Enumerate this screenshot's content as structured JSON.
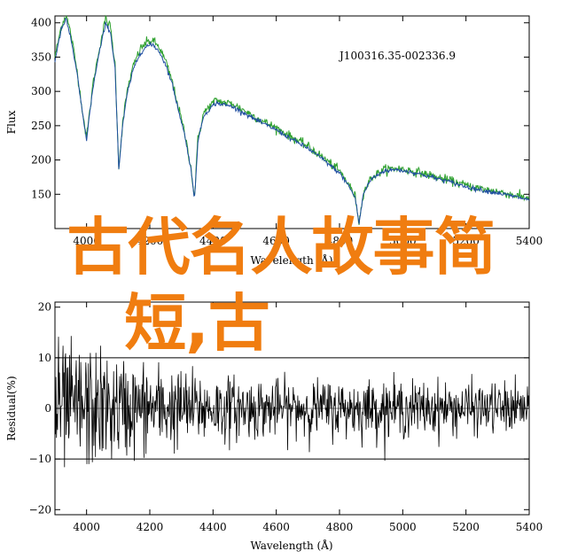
{
  "chart_data": [
    {
      "type": "line",
      "title": "",
      "annotation": "J100316.35-002336.9",
      "xlabel": "Wavelength (Å)",
      "ylabel": "Flux",
      "xlim": [
        3900,
        5400
      ],
      "ylim": [
        100,
        410
      ],
      "xticks": [
        4000,
        4200,
        4400,
        4600,
        4800,
        5000,
        5200,
        5400
      ],
      "yticks": [
        150,
        200,
        250,
        300,
        350,
        400
      ],
      "grid": false,
      "series": [
        {
          "color": "#2ca02c",
          "x": [
            3900,
            3920,
            3935,
            3950,
            3970,
            3990,
            4000,
            4020,
            4040,
            4060,
            4075,
            4090,
            4102,
            4115,
            4130,
            4150,
            4170,
            4190,
            4210,
            4230,
            4250,
            4270,
            4290,
            4310,
            4330,
            4341,
            4352,
            4370,
            4390,
            4410,
            4430,
            4460,
            4500,
            4550,
            4600,
            4650,
            4700,
            4750,
            4800,
            4830,
            4850,
            4862,
            4875,
            4900,
            4940,
            4980,
            5020,
            5060,
            5100,
            5150,
            5200,
            5250,
            5300,
            5350,
            5400
          ],
          "y": [
            350,
            395,
            412,
            385,
            330,
            262,
            232,
            310,
            362,
            405,
            395,
            340,
            190,
            258,
            305,
            340,
            362,
            372,
            374,
            364,
            344,
            316,
            278,
            240,
            190,
            143,
            230,
            268,
            279,
            287,
            284,
            282,
            272,
            258,
            247,
            233,
            220,
            203,
            184,
            164,
            146,
            108,
            152,
            174,
            186,
            188,
            185,
            181,
            176,
            170,
            163,
            158,
            154,
            149,
            144
          ]
        },
        {
          "color": "#1f4ea0",
          "x": [
            3900,
            3920,
            3935,
            3950,
            3970,
            3990,
            4000,
            4020,
            4040,
            4060,
            4075,
            4090,
            4102,
            4115,
            4130,
            4150,
            4170,
            4190,
            4210,
            4230,
            4250,
            4270,
            4290,
            4310,
            4330,
            4341,
            4352,
            4370,
            4390,
            4410,
            4430,
            4460,
            4500,
            4550,
            4600,
            4650,
            4700,
            4750,
            4800,
            4830,
            4850,
            4862,
            4875,
            4900,
            4940,
            4980,
            5020,
            5060,
            5100,
            5150,
            5200,
            5250,
            5300,
            5350,
            5400
          ],
          "y": [
            345,
            390,
            405,
            378,
            325,
            258,
            230,
            305,
            356,
            398,
            388,
            334,
            187,
            254,
            300,
            335,
            356,
            366,
            368,
            358,
            339,
            312,
            274,
            237,
            188,
            141,
            226,
            264,
            275,
            283,
            281,
            278,
            268,
            255,
            244,
            230,
            217,
            200,
            181,
            162,
            144,
            107,
            150,
            172,
            184,
            186,
            183,
            179,
            174,
            168,
            161,
            156,
            152,
            147,
            142
          ]
        }
      ]
    },
    {
      "type": "line",
      "title": "",
      "xlabel": "Wavelength (Å)",
      "ylabel": "Residual(%)",
      "xlim": [
        3900,
        5400
      ],
      "ylim": [
        -21,
        21
      ],
      "xticks": [
        4000,
        4200,
        4400,
        4600,
        4800,
        5000,
        5200,
        5400
      ],
      "yticks": [
        -20,
        -10,
        0,
        10,
        20
      ],
      "reference_lines": [
        10,
        -10
      ],
      "grid": false,
      "noise_envelope": {
        "x": [
          3900,
          4000,
          4100,
          4200,
          4300,
          4400,
          4600,
          4800,
          5000,
          5200,
          5400
        ],
        "amplitude": [
          11,
          11,
          9,
          8,
          7,
          6,
          5,
          5,
          5,
          4.5,
          4.5
        ]
      },
      "series": [
        {
          "color": "#000000"
        }
      ]
    }
  ],
  "overlay": {
    "line1": "古代名人故事简",
    "line2": "短,古"
  }
}
